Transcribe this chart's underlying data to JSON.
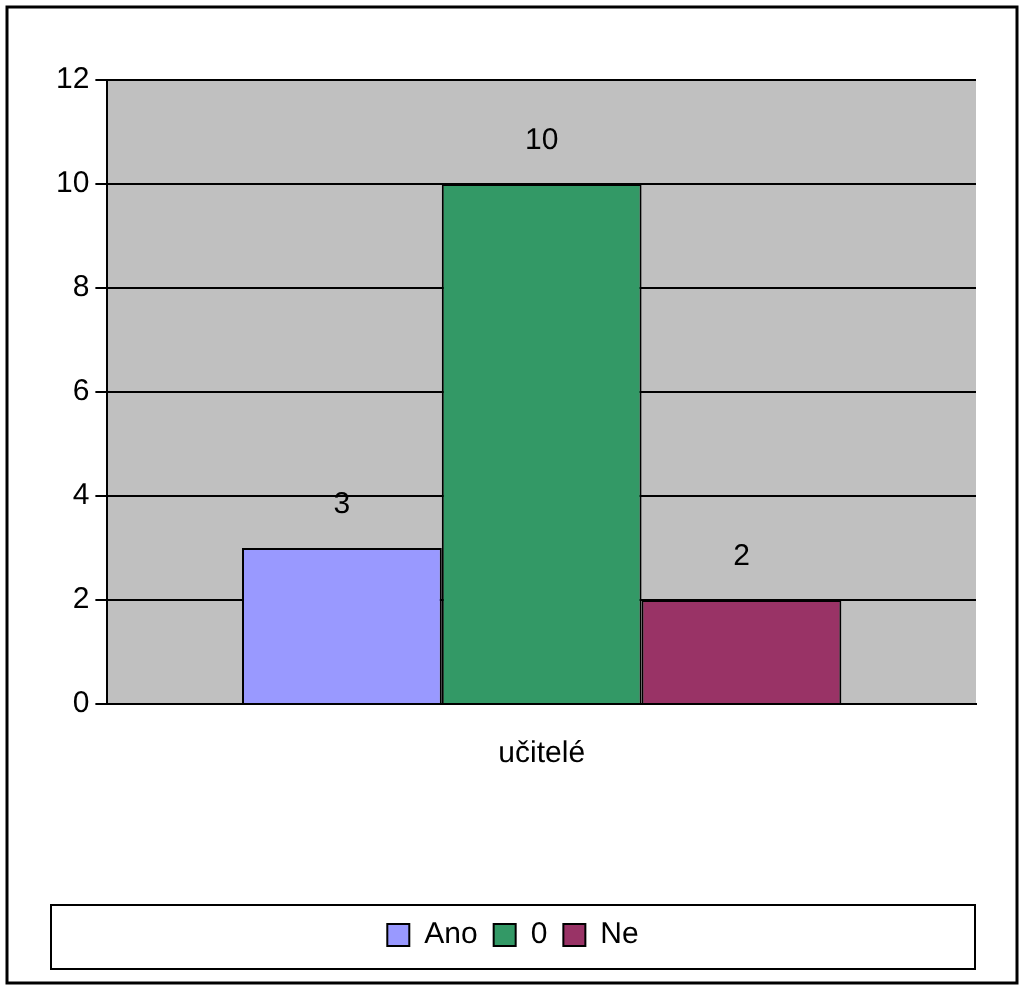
{
  "chart_data": {
    "type": "bar",
    "categories": [
      "učitelé"
    ],
    "series": [
      {
        "name": "Ano",
        "color": "#9999ff",
        "values": [
          3
        ]
      },
      {
        "name": "0",
        "color": "#339966",
        "values": [
          10
        ]
      },
      {
        "name": "Ne",
        "color": "#993366",
        "values": [
          2
        ]
      }
    ],
    "ylim": [
      0,
      12
    ],
    "yticks": [
      0,
      2,
      4,
      6,
      8,
      10,
      12
    ],
    "grid": "y",
    "legend": "bottom",
    "data_labels": true
  }
}
